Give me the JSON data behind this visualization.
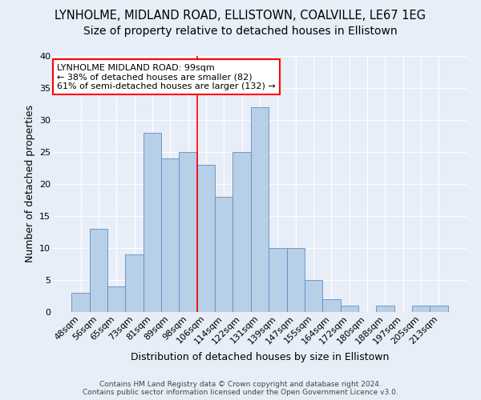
{
  "title1": "LYNHOLME, MIDLAND ROAD, ELLISTOWN, COALVILLE, LE67 1EG",
  "title2": "Size of property relative to detached houses in Ellistown",
  "xlabel": "Distribution of detached houses by size in Ellistown",
  "ylabel": "Number of detached properties",
  "categories": [
    "48sqm",
    "56sqm",
    "65sqm",
    "73sqm",
    "81sqm",
    "89sqm",
    "98sqm",
    "106sqm",
    "114sqm",
    "122sqm",
    "131sqm",
    "139sqm",
    "147sqm",
    "155sqm",
    "164sqm",
    "172sqm",
    "180sqm",
    "188sqm",
    "197sqm",
    "205sqm",
    "213sqm"
  ],
  "values": [
    3,
    13,
    4,
    9,
    28,
    24,
    25,
    23,
    18,
    25,
    32,
    10,
    10,
    5,
    2,
    1,
    0,
    1,
    0,
    1,
    1
  ],
  "bar_color": "#b8cfe8",
  "bar_edge_color": "#5b8fc5",
  "red_line_index": 6.5,
  "annotation_line1": "LYNHOLME MIDLAND ROAD: 99sqm",
  "annotation_line2": "← 38% of detached houses are smaller (82)",
  "annotation_line3": "61% of semi-detached houses are larger (132) →",
  "annotation_box_color": "white",
  "annotation_box_edge_color": "red",
  "ylim": [
    0,
    40
  ],
  "yticks": [
    0,
    5,
    10,
    15,
    20,
    25,
    30,
    35,
    40
  ],
  "background_color": "#e8eef8",
  "grid_color": "white",
  "title1_fontsize": 10.5,
  "title2_fontsize": 10,
  "xlabel_fontsize": 9,
  "ylabel_fontsize": 9,
  "tick_fontsize": 8,
  "footer_text": "Contains HM Land Registry data © Crown copyright and database right 2024.\nContains public sector information licensed under the Open Government Licence v3.0.",
  "footer_fontsize": 6.5
}
